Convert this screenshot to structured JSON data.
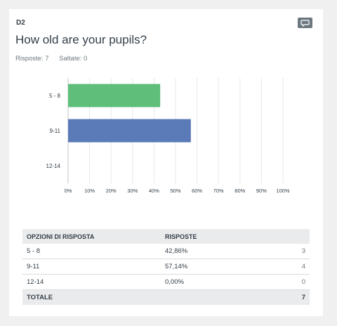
{
  "question": {
    "id": "D2",
    "title": "How old are your pupils?",
    "answered_label": "Risposte: 7",
    "skipped_label": "Saltate: 0",
    "comment_icon": "comment-icon"
  },
  "chart_data": {
    "type": "bar",
    "orientation": "horizontal",
    "categories": [
      "5 - 8",
      "9-11",
      "12-14"
    ],
    "values": [
      42.86,
      57.14,
      0
    ],
    "colors": [
      "#5fbf7a",
      "#5b7ab8",
      "#cccccc"
    ],
    "xlim": [
      0,
      100
    ],
    "ticks": [
      "0%",
      "10%",
      "20%",
      "30%",
      "40%",
      "50%",
      "60%",
      "70%",
      "80%",
      "90%",
      "100%"
    ],
    "grid": true
  },
  "table": {
    "headers": [
      "OPZIONI DI RISPOSTA",
      "RISPOSTE",
      ""
    ],
    "rows": [
      {
        "option": "5 - 8",
        "pct": "42,86%",
        "count": "3"
      },
      {
        "option": "9-11",
        "pct": "57,14%",
        "count": "4"
      },
      {
        "option": "12-14",
        "pct": "0,00%",
        "count": "0"
      }
    ],
    "total_label": "TOTALE",
    "total_value": "7"
  }
}
